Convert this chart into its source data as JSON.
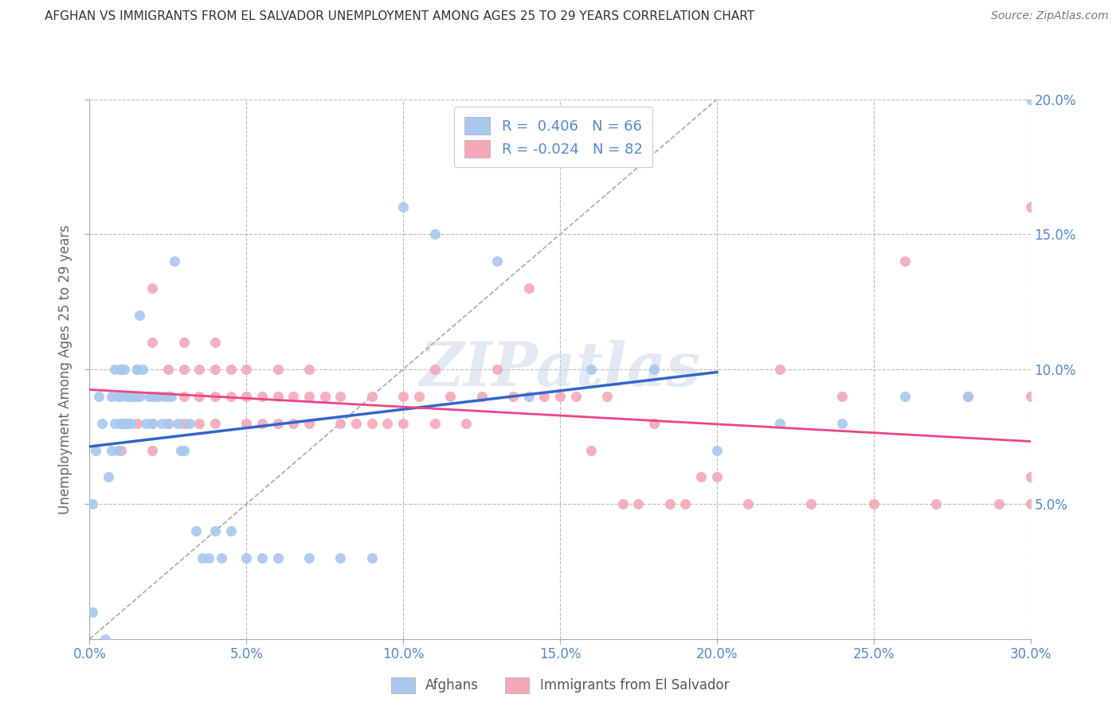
{
  "title": "AFGHAN VS IMMIGRANTS FROM EL SALVADOR UNEMPLOYMENT AMONG AGES 25 TO 29 YEARS CORRELATION CHART",
  "source": "Source: ZipAtlas.com",
  "ylabel": "Unemployment Among Ages 25 to 29 years",
  "xlim": [
    0.0,
    0.3
  ],
  "ylim": [
    0.0,
    0.2
  ],
  "xtick_vals": [
    0.0,
    0.05,
    0.1,
    0.15,
    0.2,
    0.25,
    0.3
  ],
  "ytick_vals": [
    0.05,
    0.1,
    0.15,
    0.2
  ],
  "afghan_color": "#a8c8f0",
  "salvador_color": "#f4a8b8",
  "afghan_line_color": "#3366cc",
  "salvador_line_color": "#ee4488",
  "diagonal_line_color": "#aaaaaa",
  "background_color": "#ffffff",
  "grid_color": "#bbbbbb",
  "title_color": "#333333",
  "tick_color": "#5588cc",
  "watermark": "ZIPatlas",
  "legend_label_afghan": "R =  0.406   N = 66",
  "legend_label_salvador": "R = -0.024   N = 82",
  "bottom_legend_afghan": "Afghans",
  "bottom_legend_salvador": "Immigrants from El Salvador",
  "afghan_x": [
    0.001,
    0.001,
    0.002,
    0.003,
    0.004,
    0.005,
    0.006,
    0.007,
    0.007,
    0.008,
    0.008,
    0.009,
    0.009,
    0.01,
    0.01,
    0.01,
    0.011,
    0.011,
    0.012,
    0.012,
    0.013,
    0.013,
    0.014,
    0.015,
    0.015,
    0.016,
    0.016,
    0.017,
    0.018,
    0.019,
    0.02,
    0.021,
    0.022,
    0.023,
    0.024,
    0.025,
    0.026,
    0.027,
    0.028,
    0.029,
    0.03,
    0.032,
    0.034,
    0.036,
    0.038,
    0.04,
    0.042,
    0.045,
    0.05,
    0.055,
    0.06,
    0.07,
    0.08,
    0.09,
    0.1,
    0.11,
    0.13,
    0.14,
    0.16,
    0.18,
    0.2,
    0.22,
    0.24,
    0.26,
    0.28,
    0.3
  ],
  "afghan_y": [
    0.01,
    0.05,
    0.07,
    0.09,
    0.08,
    0.0,
    0.06,
    0.07,
    0.09,
    0.08,
    0.1,
    0.07,
    0.09,
    0.08,
    0.09,
    0.1,
    0.08,
    0.1,
    0.08,
    0.09,
    0.08,
    0.09,
    0.09,
    0.1,
    0.1,
    0.09,
    0.12,
    0.1,
    0.08,
    0.09,
    0.08,
    0.09,
    0.09,
    0.08,
    0.09,
    0.08,
    0.09,
    0.14,
    0.08,
    0.07,
    0.07,
    0.08,
    0.04,
    0.03,
    0.03,
    0.04,
    0.03,
    0.04,
    0.03,
    0.03,
    0.03,
    0.03,
    0.03,
    0.03,
    0.16,
    0.15,
    0.14,
    0.09,
    0.1,
    0.1,
    0.07,
    0.08,
    0.08,
    0.09,
    0.09,
    0.2
  ],
  "salvador_x": [
    0.01,
    0.01,
    0.01,
    0.015,
    0.015,
    0.02,
    0.02,
    0.02,
    0.02,
    0.02,
    0.025,
    0.025,
    0.025,
    0.03,
    0.03,
    0.03,
    0.03,
    0.035,
    0.035,
    0.035,
    0.04,
    0.04,
    0.04,
    0.04,
    0.045,
    0.045,
    0.05,
    0.05,
    0.05,
    0.055,
    0.055,
    0.06,
    0.06,
    0.06,
    0.065,
    0.065,
    0.07,
    0.07,
    0.07,
    0.075,
    0.08,
    0.08,
    0.085,
    0.09,
    0.09,
    0.095,
    0.1,
    0.1,
    0.105,
    0.11,
    0.11,
    0.115,
    0.12,
    0.125,
    0.13,
    0.135,
    0.14,
    0.145,
    0.15,
    0.155,
    0.16,
    0.165,
    0.17,
    0.175,
    0.18,
    0.185,
    0.19,
    0.195,
    0.2,
    0.21,
    0.22,
    0.23,
    0.24,
    0.25,
    0.26,
    0.27,
    0.28,
    0.29,
    0.3,
    0.3,
    0.3,
    0.3
  ],
  "salvador_y": [
    0.1,
    0.08,
    0.07,
    0.09,
    0.08,
    0.13,
    0.11,
    0.09,
    0.08,
    0.07,
    0.1,
    0.09,
    0.08,
    0.11,
    0.1,
    0.09,
    0.08,
    0.1,
    0.09,
    0.08,
    0.11,
    0.1,
    0.09,
    0.08,
    0.1,
    0.09,
    0.1,
    0.09,
    0.08,
    0.09,
    0.08,
    0.1,
    0.09,
    0.08,
    0.09,
    0.08,
    0.1,
    0.09,
    0.08,
    0.09,
    0.09,
    0.08,
    0.08,
    0.09,
    0.08,
    0.08,
    0.09,
    0.08,
    0.09,
    0.1,
    0.08,
    0.09,
    0.08,
    0.09,
    0.1,
    0.09,
    0.13,
    0.09,
    0.09,
    0.09,
    0.07,
    0.09,
    0.05,
    0.05,
    0.08,
    0.05,
    0.05,
    0.06,
    0.06,
    0.05,
    0.1,
    0.05,
    0.09,
    0.05,
    0.14,
    0.05,
    0.09,
    0.05,
    0.05,
    0.09,
    0.16,
    0.06
  ]
}
